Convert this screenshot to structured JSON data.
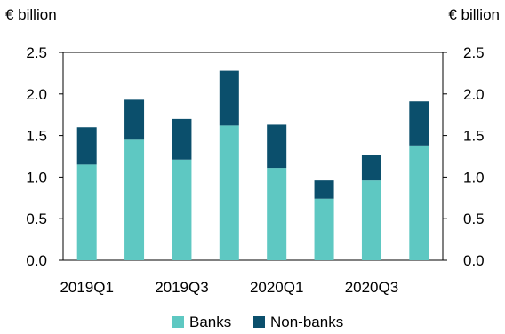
{
  "chart_data": {
    "type": "bar",
    "stacked": true,
    "title": "",
    "y_unit_left": "€ billion",
    "y_unit_right": "€ billion",
    "categories": [
      "2019Q1",
      "2019Q2",
      "2019Q3",
      "2019Q4",
      "2020Q1",
      "2020Q2",
      "2020Q3",
      "2020Q4"
    ],
    "category_labels_shown": [
      "2019Q1",
      "",
      "2019Q3",
      "",
      "2020Q1",
      "",
      "2020Q3",
      ""
    ],
    "series": [
      {
        "name": "Banks",
        "color": "#5ec8c2",
        "values": [
          1.15,
          1.45,
          1.21,
          1.62,
          1.11,
          0.74,
          0.96,
          1.38
        ]
      },
      {
        "name": "Non-banks",
        "color": "#0b4f6c",
        "values": [
          0.45,
          0.48,
          0.49,
          0.66,
          0.52,
          0.22,
          0.31,
          0.53
        ]
      }
    ],
    "ylim": [
      0,
      2.5
    ],
    "yticks": [
      "0.0",
      "0.5",
      "1.0",
      "1.5",
      "2.0",
      "2.5"
    ],
    "grid": false,
    "legend_position": "bottom"
  }
}
